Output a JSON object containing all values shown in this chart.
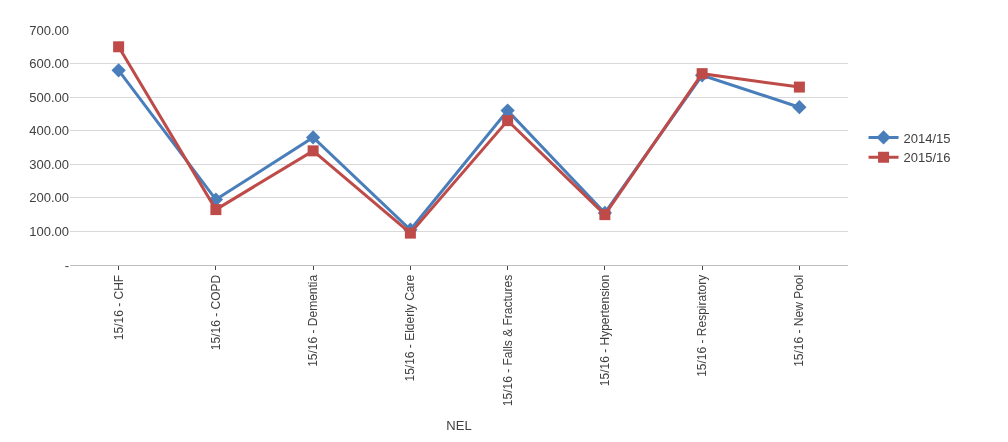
{
  "chart_data": {
    "type": "line",
    "xlabel": "NEL",
    "categories": [
      "15/16 - CHF",
      "15/16 - COPD",
      "15/16 - Dementia",
      "15/16 - Elderly Care",
      "15/16 - Falls & Fractures",
      "15/16 - Hypertension",
      "15/16 - Respiratory",
      "15/16 - New Pool"
    ],
    "series": [
      {
        "name": "2014/15",
        "color": "#4a7ebb",
        "marker": "diamond",
        "values": [
          580,
          195,
          380,
          105,
          460,
          155,
          565,
          470
        ]
      },
      {
        "name": "2015/16",
        "color": "#be4b48",
        "marker": "square",
        "values": [
          650,
          165,
          340,
          95,
          430,
          150,
          570,
          530
        ]
      }
    ],
    "ylim": [
      0,
      700
    ],
    "yticks": [
      {
        "value": 0,
        "label": "-"
      },
      {
        "value": 100,
        "label": "100.00"
      },
      {
        "value": 200,
        "label": "200.00"
      },
      {
        "value": 300,
        "label": "300.00"
      },
      {
        "value": 400,
        "label": "400.00"
      },
      {
        "value": 500,
        "label": "500.00"
      },
      {
        "value": 600,
        "label": "600.00"
      },
      {
        "value": 700,
        "label": "700.00"
      }
    ],
    "grid": "y",
    "legend": "right",
    "line_style": "solid"
  }
}
